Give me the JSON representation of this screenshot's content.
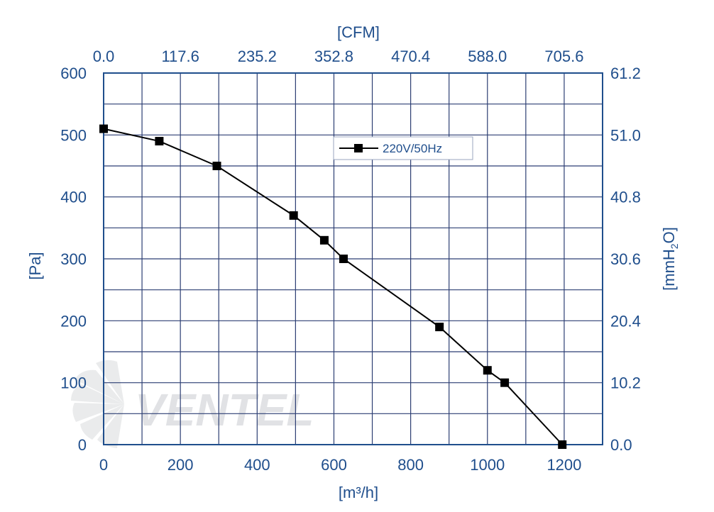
{
  "chart_data": {
    "type": "line",
    "xlabel": "[m³/h]",
    "ylabel": "[Pa]",
    "x2label": "[CFM]",
    "y2label": "[mmH2O]",
    "xlim": [
      0,
      1300
    ],
    "ylim": [
      0,
      600
    ],
    "x_ticks": [
      "0",
      "200",
      "400",
      "600",
      "800",
      "1000",
      "1200"
    ],
    "y_ticks": [
      "0",
      "100",
      "200",
      "300",
      "400",
      "500",
      "600"
    ],
    "x2_ticks": [
      "0.0",
      "117.6",
      "235.2",
      "352.8",
      "470.4",
      "588.0",
      "705.6"
    ],
    "y2_ticks": [
      "0.0",
      "10.2",
      "20.4",
      "30.6",
      "40.8",
      "51.0",
      "61.2"
    ],
    "grid": true,
    "legend_position": "top-center",
    "series": [
      {
        "name": "220V/50Hz",
        "color": "#000000",
        "marker": "square",
        "x": [
          0,
          145,
          295,
          495,
          575,
          625,
          875,
          1000,
          1045,
          1195
        ],
        "y": [
          510,
          490,
          450,
          370,
          330,
          300,
          190,
          120,
          100,
          0
        ]
      }
    ]
  },
  "watermark": {
    "text": "VENTEL"
  },
  "colors": {
    "axis_text": "#1f4e8c",
    "grid": "#2c3e73",
    "frame": "#1f4e8c"
  }
}
